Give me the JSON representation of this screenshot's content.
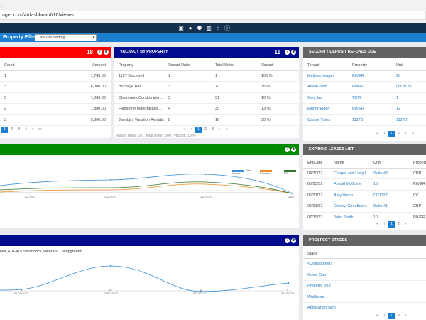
{
  "browser": {
    "back_icon": "back-arrow-icon",
    "url": "ager.com/#/dashboard/16/viewer"
  },
  "topbar": {
    "icons": [
      "monitor-icon",
      "user-icon",
      "users-icon",
      "building-icon",
      "home-icon",
      "info-icon"
    ]
  },
  "filter": {
    "label": "Property Filter",
    "value": "Use Tile Setting"
  },
  "colors": {
    "red": "#ff0000",
    "navy": "#000b8e",
    "green": "#008a00",
    "grey": "#636363",
    "blue": "#1a7fd0"
  },
  "panel1": {
    "count": "18",
    "headers": [
      "Count",
      "Amount"
    ],
    "rows": [
      [
        "1",
        "1,745.00"
      ],
      [
        "3",
        "6,000.00"
      ],
      [
        "3",
        "1,000.00"
      ],
      [
        "2",
        "1,880.00"
      ],
      [
        "3",
        "5,600.00"
      ]
    ],
    "pages": [
      "1",
      "2",
      "3",
      "4",
      "»",
      "»»"
    ]
  },
  "vacancy": {
    "title": "VACANCY BY PROPERTY",
    "count": "11",
    "headers": [
      "Property",
      "Vacant Units",
      "Total Units",
      "Vacant"
    ],
    "rows": [
      [
        "1127 Blackwell",
        "1",
        "1",
        "100 %"
      ],
      [
        "Buckeye Hall",
        "3",
        "20",
        "15 %"
      ],
      [
        "Clearcreek Condominiu...",
        "3",
        "31",
        "10 %"
      ],
      [
        "Flagstone Manufacture...",
        "4",
        "30",
        "13 %"
      ],
      [
        "Jacoby's Vacation Rentals",
        "8",
        "16",
        "50 %"
      ]
    ],
    "pages": [
      "«",
      "‹",
      "1",
      "2",
      "3",
      "›",
      "»"
    ],
    "footer": "Vacant Units : 37 , Total Units : 200 , Vacant : 19 %"
  },
  "deposit": {
    "title": "SECURITY DEPOSIT REFUNDS DUE",
    "headers": [
      "Tenant",
      "Property",
      "Unit"
    ],
    "rows": [
      [
        "Melissa Yeager",
        "RIVER",
        "20"
      ],
      [
        "Adwin Talib",
        "FMHP",
        "Lot #120"
      ],
      [
        "Geo, Inc.",
        "TCM",
        "1"
      ],
      [
        "Esther Elden",
        "RIVER",
        "12"
      ],
      [
        "Cassie Yates",
        "1127B",
        "1127B"
      ]
    ],
    "pages": [
      "«",
      "‹",
      "1",
      "2",
      "›",
      "»"
    ]
  },
  "leases": {
    "title": "EXPIRING LEASES LIST",
    "headers": [
      "EndDate",
      "Name",
      "Unit",
      "Propert"
    ],
    "rows": [
      [
        "04/30/22",
        "Cooper and Long L...",
        "Suite #2",
        "CBP"
      ],
      [
        "05/23/22",
        "Arnold McGuire",
        "15",
        "RIVER"
      ],
      [
        "05/31/22",
        "Amy Webb",
        "CC1127",
        "CC"
      ],
      [
        "05/31/22",
        "Dewey, Cheatham ...",
        "Suite #1",
        "CBP"
      ],
      [
        "07/19/22",
        "John Smith",
        "10",
        "RIVER"
      ]
    ],
    "pages": [
      "«",
      "‹",
      "1",
      "2",
      "›"
    ]
  },
  "green_chart": {
    "legend": [
      "Total Income",
      "Expense",
      "NOI"
    ],
    "xlabels": [
      "Jan/2022",
      "Feb/2022",
      "Mar/2022",
      "APR"
    ]
  },
  "navy_chart": {
    "subtitle": "Hall,410-415 Southdock,Miller RV Campground",
    "xlabels": [
      "01/01/2022",
      "02/01/2022",
      "03/01/2022",
      "04/01/2022"
    ],
    "points": [
      "3",
      "15",
      "5",
      "9"
    ]
  },
  "prospects": {
    "title": "PROSPECT STAGES",
    "header": "Stage",
    "rows": [
      "<Unassigned>",
      "Guest Card",
      "Property Tour",
      "Waitlisted",
      "Application Sent"
    ],
    "pages": [
      "«",
      "‹",
      "1",
      "2",
      "›"
    ]
  }
}
